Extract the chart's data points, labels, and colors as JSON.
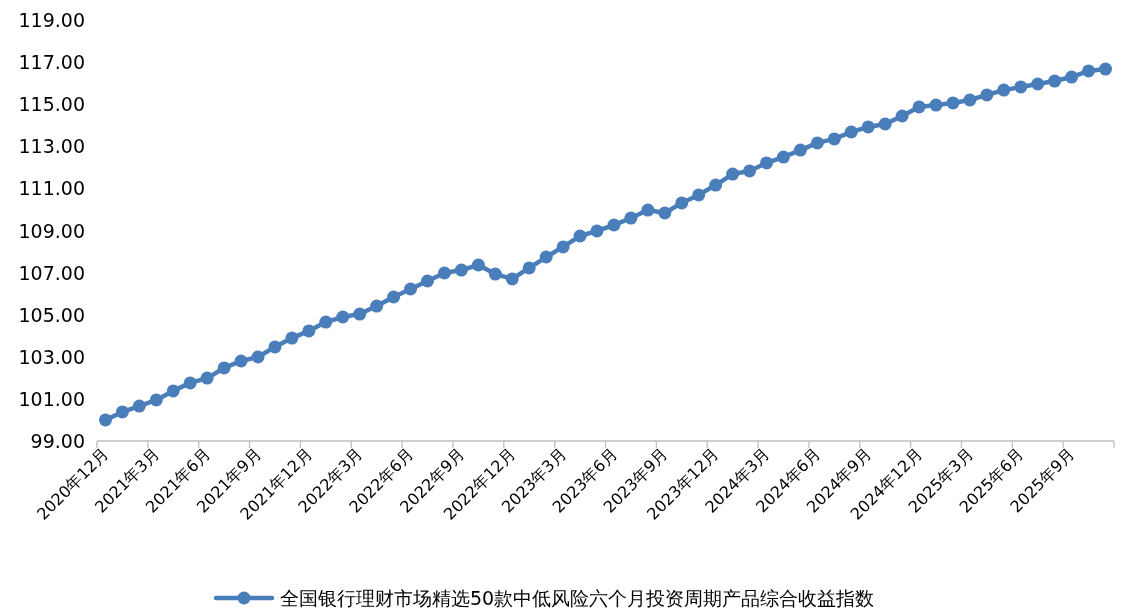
{
  "chart_data": {
    "type": "line",
    "categories": [
      "2020年12月",
      null,
      null,
      "2021年3月",
      null,
      null,
      "2021年6月",
      null,
      null,
      "2021年9月",
      null,
      null,
      "2021年12月",
      null,
      null,
      "2022年3月",
      null,
      null,
      "2022年6月",
      null,
      null,
      "2022年9月",
      null,
      null,
      "2022年12月",
      null,
      null,
      "2023年3月",
      null,
      null,
      "2023年6月",
      null,
      null,
      "2023年9月",
      null,
      null,
      "2023年12月",
      null,
      null,
      "2024年3月",
      null,
      null,
      "2024年6月",
      null,
      null,
      "2024年9月",
      null,
      null,
      "2024年12月",
      null,
      null,
      "2025年3月",
      null,
      null,
      "2025年6月",
      null,
      null,
      "2025年9月",
      null,
      null
    ],
    "series": [
      {
        "name": "全国银行理财市场精选50款中低风险六个月投资周期产品综合收益指数",
        "color": "#4a7ebb",
        "values": [
          100.0,
          100.38,
          100.66,
          100.95,
          101.38,
          101.76,
          101.99,
          102.47,
          102.8,
          102.99,
          103.47,
          103.89,
          104.23,
          104.65,
          104.89,
          105.03,
          105.41,
          105.84,
          106.22,
          106.6,
          106.98,
          107.12,
          107.36,
          106.93,
          106.7,
          107.22,
          107.74,
          108.22,
          108.74,
          108.98,
          109.26,
          109.59,
          109.97,
          109.83,
          110.31,
          110.69,
          111.16,
          111.68,
          111.83,
          112.21,
          112.49,
          112.82,
          113.16,
          113.35,
          113.68,
          113.92,
          114.06,
          114.44,
          114.87,
          114.96,
          115.06,
          115.2,
          115.44,
          115.67,
          115.82,
          115.96,
          116.1,
          116.29,
          116.58,
          116.67
        ]
      }
    ],
    "ylim": [
      99,
      119
    ],
    "yticks": [
      {
        "value": 99,
        "label": "99.00"
      },
      {
        "value": 101,
        "label": "101.00"
      },
      {
        "value": 103,
        "label": "103.00"
      },
      {
        "value": 105,
        "label": "105.00"
      },
      {
        "value": 107,
        "label": "107.00"
      },
      {
        "value": 109,
        "label": "109.00"
      },
      {
        "value": 111,
        "label": "111.00"
      },
      {
        "value": 113,
        "label": "113.00"
      },
      {
        "value": 115,
        "label": "115.00"
      },
      {
        "value": 117,
        "label": "117.00"
      },
      {
        "value": 119,
        "label": "119.00"
      }
    ],
    "marker": "circle",
    "legend": "bottom",
    "grid": false
  }
}
